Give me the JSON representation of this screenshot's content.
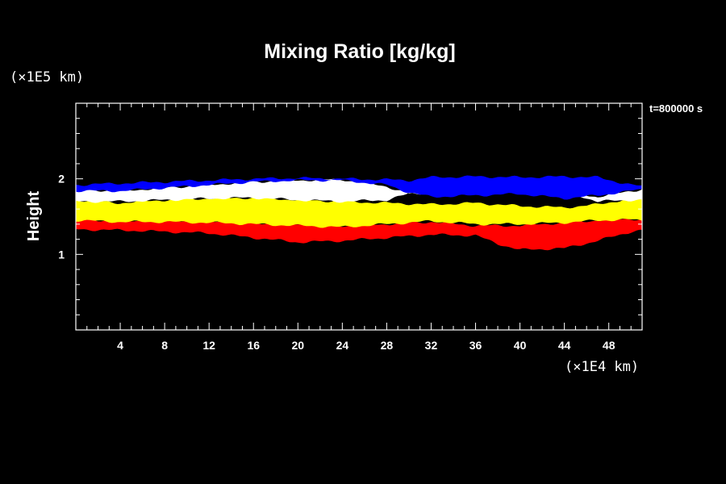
{
  "chart_data": {
    "type": "heatmap",
    "title": "Mixing Ratio [kg/kg]",
    "ylabel": "Height",
    "x_unit": "(×1E4 km)",
    "y_unit": "(×1E5 km)",
    "time_label": "t=800000 s",
    "xlim": [
      0,
      51
    ],
    "ylim": [
      0,
      3
    ],
    "x_ticks": [
      "4",
      "8",
      "12",
      "16",
      "20",
      "24",
      "28",
      "32",
      "36",
      "40",
      "44",
      "48"
    ],
    "x_tick_values": [
      4,
      8,
      12,
      16,
      20,
      24,
      28,
      32,
      36,
      40,
      44,
      48
    ],
    "y_ticks": [
      "1",
      "2"
    ],
    "y_tick_values": [
      1,
      2
    ],
    "colors": {
      "background": "#000000",
      "red": "#ff0000",
      "yellow": "#ffff00",
      "white": "#ffffff",
      "blue": "#0000ff",
      "green": "#00ff00"
    },
    "layers": [
      {
        "color": "red",
        "bottom": [
          [
            0,
            1.33
          ],
          [
            4,
            1.32
          ],
          [
            8,
            1.3
          ],
          [
            12,
            1.28
          ],
          [
            16,
            1.22
          ],
          [
            20,
            1.16
          ],
          [
            24,
            1.18
          ],
          [
            28,
            1.22
          ],
          [
            32,
            1.26
          ],
          [
            36,
            1.25
          ],
          [
            38,
            1.14
          ],
          [
            40,
            1.06
          ],
          [
            44,
            1.08
          ],
          [
            47,
            1.18
          ],
          [
            50,
            1.3
          ],
          [
            51,
            1.32
          ]
        ],
        "top": [
          [
            0,
            1.47
          ],
          [
            4,
            1.44
          ],
          [
            8,
            1.46
          ],
          [
            12,
            1.44
          ],
          [
            16,
            1.42
          ],
          [
            20,
            1.4
          ],
          [
            24,
            1.38
          ],
          [
            28,
            1.4
          ],
          [
            32,
            1.43
          ],
          [
            36,
            1.38
          ],
          [
            40,
            1.38
          ],
          [
            44,
            1.42
          ],
          [
            47,
            1.45
          ],
          [
            50,
            1.47
          ],
          [
            51,
            1.46
          ]
        ]
      },
      {
        "color": "yellow",
        "bottom": [
          [
            0,
            1.45
          ],
          [
            4,
            1.43
          ],
          [
            8,
            1.43
          ],
          [
            12,
            1.42
          ],
          [
            16,
            1.4
          ],
          [
            20,
            1.38
          ],
          [
            24,
            1.36
          ],
          [
            28,
            1.4
          ],
          [
            32,
            1.44
          ],
          [
            36,
            1.4
          ],
          [
            40,
            1.4
          ],
          [
            44,
            1.42
          ],
          [
            47,
            1.45
          ],
          [
            50,
            1.46
          ],
          [
            51,
            1.45
          ]
        ],
        "top": [
          [
            0,
            1.72
          ],
          [
            4,
            1.68
          ],
          [
            8,
            1.72
          ],
          [
            12,
            1.74
          ],
          [
            16,
            1.75
          ],
          [
            20,
            1.72
          ],
          [
            24,
            1.7
          ],
          [
            28,
            1.68
          ],
          [
            32,
            1.66
          ],
          [
            36,
            1.68
          ],
          [
            40,
            1.64
          ],
          [
            44,
            1.62
          ],
          [
            47,
            1.66
          ],
          [
            50,
            1.74
          ],
          [
            51,
            1.73
          ]
        ]
      },
      {
        "color": "white",
        "bottom": [
          [
            0,
            1.7
          ],
          [
            4,
            1.7
          ],
          [
            8,
            1.72
          ],
          [
            12,
            1.74
          ],
          [
            16,
            1.75
          ],
          [
            20,
            1.72
          ],
          [
            24,
            1.7
          ],
          [
            28,
            1.72
          ],
          [
            30,
            1.8
          ],
          [
            32,
            1.82
          ],
          [
            34,
            1.85
          ],
          [
            36,
            1.86
          ],
          [
            40,
            1.86
          ],
          [
            44,
            1.84
          ],
          [
            47,
            1.7
          ],
          [
            50,
            1.72
          ],
          [
            51,
            1.72
          ]
        ],
        "top": [
          [
            0,
            1.86
          ],
          [
            4,
            1.84
          ],
          [
            8,
            1.88
          ],
          [
            12,
            1.92
          ],
          [
            16,
            1.96
          ],
          [
            20,
            1.98
          ],
          [
            24,
            1.99
          ],
          [
            28,
            1.9
          ],
          [
            30,
            1.8
          ],
          [
            32,
            1.82
          ],
          [
            34,
            1.85
          ],
          [
            36,
            1.86
          ],
          [
            40,
            1.86
          ],
          [
            44,
            1.84
          ],
          [
            47,
            1.76
          ],
          [
            50,
            1.84
          ],
          [
            51,
            1.86
          ]
        ]
      },
      {
        "color": "blue",
        "bottom": [
          [
            0,
            1.84
          ],
          [
            4,
            1.84
          ],
          [
            8,
            1.88
          ],
          [
            12,
            1.92
          ],
          [
            16,
            1.96
          ],
          [
            20,
            1.98
          ],
          [
            24,
            1.98
          ],
          [
            28,
            1.92
          ],
          [
            30,
            1.82
          ],
          [
            32,
            1.76
          ],
          [
            36,
            1.78
          ],
          [
            40,
            1.8
          ],
          [
            44,
            1.74
          ],
          [
            47,
            1.78
          ],
          [
            50,
            1.84
          ],
          [
            51,
            1.86
          ]
        ],
        "top": [
          [
            0,
            1.92
          ],
          [
            4,
            1.94
          ],
          [
            8,
            1.96
          ],
          [
            12,
            1.98
          ],
          [
            16,
            2.0
          ],
          [
            20,
            2.01
          ],
          [
            24,
            2.0
          ],
          [
            28,
            1.99
          ],
          [
            30,
            1.98
          ],
          [
            32,
            2.02
          ],
          [
            36,
            2.03
          ],
          [
            40,
            2.02
          ],
          [
            44,
            2.03
          ],
          [
            47,
            2.02
          ],
          [
            50,
            1.92
          ],
          [
            51,
            1.9
          ]
        ]
      }
    ]
  }
}
